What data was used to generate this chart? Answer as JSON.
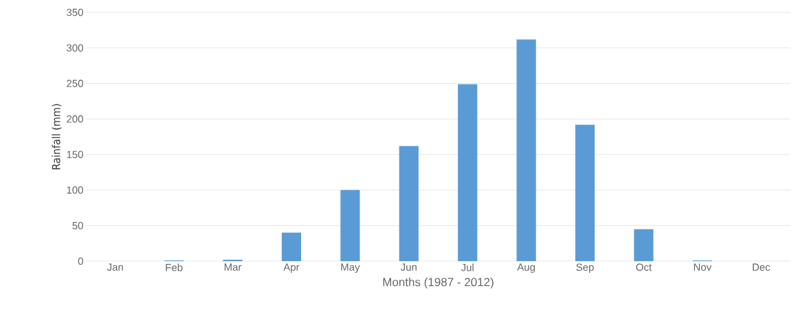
{
  "chart_data": {
    "type": "bar",
    "xlabel": "Months (1987 - 2012)",
    "ylabel": "Rainfall (mm)",
    "categories": [
      "Jan",
      "Feb",
      "Mar",
      "Apr",
      "May",
      "Jun",
      "Jul",
      "Aug",
      "Sep",
      "Oct",
      "Nov",
      "Dec"
    ],
    "values": [
      0,
      1,
      2,
      40,
      100,
      162,
      249,
      312,
      192,
      45,
      1,
      0
    ],
    "color": "#5b9bd5",
    "ylim": [
      0,
      350
    ],
    "yticks": [
      0,
      50,
      100,
      150,
      200,
      250,
      300,
      350
    ],
    "grid": "y"
  }
}
